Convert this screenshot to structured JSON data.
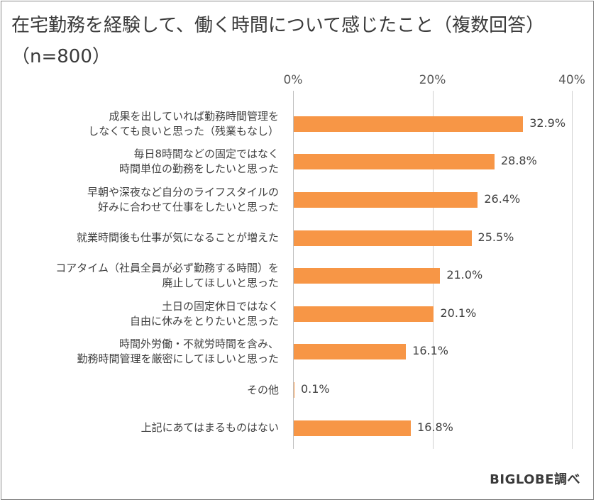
{
  "chart_data": {
    "type": "bar",
    "orientation": "horizontal",
    "title": "在宅勤務を経験して、働く時間について感じたこと（複数回答）",
    "subtitle": "（n=800）",
    "xlim": [
      0,
      40
    ],
    "ticks": [
      "0%",
      "20%",
      "40%"
    ],
    "tick_values": [
      0,
      20,
      40
    ],
    "categories": [
      [
        "成果を出していれば勤務時間管理を",
        "しなくても良いと思った（残業もなし）"
      ],
      [
        "毎日8時間などの固定ではなく",
        "時間単位の勤務をしたいと思った"
      ],
      [
        "早朝や深夜など自分のライフスタイルの",
        "好みに合わせて仕事をしたいと思った"
      ],
      [
        "就業時間後も仕事が気になることが増えた"
      ],
      [
        "コアタイム（社員全員が必ず勤務する時間）を",
        "廃止してほしいと思った"
      ],
      [
        "土日の固定休日ではなく",
        "自由に休みをとりたいと思った"
      ],
      [
        "時間外労働・不就労時間を含み、",
        "勤務時間管理を厳密にしてほしいと思った"
      ],
      [
        "その他"
      ],
      [
        "上記にあてはまるものはない"
      ]
    ],
    "values": [
      32.9,
      28.8,
      26.4,
      25.5,
      21.0,
      20.1,
      16.1,
      0.1,
      16.8
    ],
    "value_labels": [
      "32.9%",
      "28.8%",
      "26.4%",
      "25.5%",
      "21.0%",
      "20.1%",
      "16.1%",
      "0.1%",
      "16.8%"
    ],
    "bar_color": "#f79646"
  },
  "source": "BIGLOBE調べ"
}
